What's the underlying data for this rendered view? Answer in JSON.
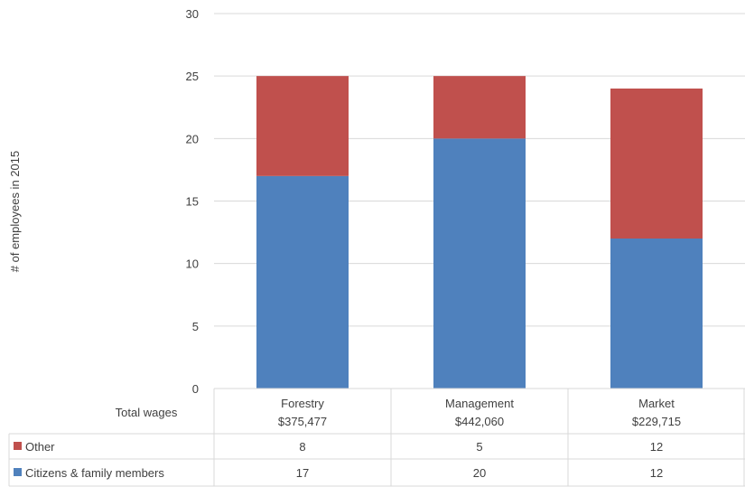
{
  "chart_data": {
    "type": "bar",
    "stacked": true,
    "title": "",
    "xlabel": "",
    "ylabel": "# of employees in 2015",
    "ylim": [
      0,
      30
    ],
    "yticks": [
      0,
      5,
      10,
      15,
      20,
      25,
      30
    ],
    "grid": true,
    "categories": [
      "Forestry",
      "Management",
      "Market"
    ],
    "category_wages": [
      "$375,477",
      "$442,060",
      "$229,715"
    ],
    "series": [
      {
        "name": "Citizens  & family members",
        "color": "#4f81bd",
        "values": [
          17,
          20,
          12
        ]
      },
      {
        "name": "Other",
        "color": "#c0504d",
        "values": [
          8,
          5,
          12
        ]
      }
    ],
    "data_table": {
      "header_label": "Total wages",
      "legend_position": "data-table-rows"
    }
  }
}
